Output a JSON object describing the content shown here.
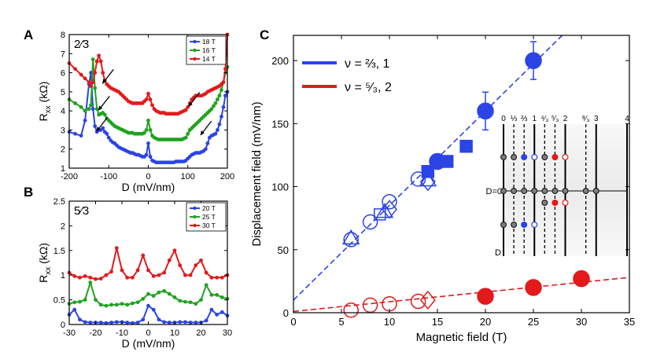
{
  "colors": {
    "blue": "#2b44e6",
    "green": "#1fa31f",
    "red": "#e3191b",
    "black": "#000000",
    "inset_bg": "#ebebeb"
  },
  "chart_data": [
    {
      "id": "A",
      "panel_label": "A",
      "type": "line",
      "annotation": "2⁄3",
      "xlabel": "D (mV/nm)",
      "ylabel": "R_xx (kΩ)",
      "xlim": [
        -200,
        200
      ],
      "ylim": [
        1,
        8
      ],
      "xticks": [
        -200,
        -100,
        0,
        100,
        200
      ],
      "yticks": [
        1,
        2,
        3,
        4,
        5,
        6,
        7,
        8
      ],
      "xtick_labels": [
        "-200",
        "-100",
        "0",
        "100",
        "200"
      ],
      "ytick_labels": [
        "1",
        "2",
        "3",
        "4",
        "5",
        "6",
        "7",
        "8"
      ],
      "legend": [
        "18 T",
        "16 T",
        "14 T"
      ],
      "legend_position": "top-right",
      "arrows": [
        {
          "x": -100,
          "y": 5.8
        },
        {
          "x": -110,
          "y": 4.4
        },
        {
          "x": -115,
          "y": 3.3
        },
        {
          "x": 118,
          "y": 4.6
        },
        {
          "x": 148,
          "y": 3.1
        }
      ],
      "x": [
        -200,
        -185,
        -170,
        -160,
        -150,
        -145,
        -140,
        -135,
        -130,
        -125,
        -120,
        -115,
        -110,
        -105,
        -100,
        -95,
        -90,
        -85,
        -80,
        -75,
        -70,
        -65,
        -60,
        -55,
        -50,
        -45,
        -40,
        -35,
        -30,
        -25,
        -20,
        -15,
        -10,
        -5,
        0,
        5,
        10,
        15,
        20,
        25,
        30,
        35,
        40,
        45,
        50,
        55,
        60,
        65,
        70,
        75,
        80,
        85,
        90,
        95,
        100,
        105,
        110,
        115,
        120,
        125,
        130,
        135,
        140,
        145,
        150,
        155,
        160,
        165,
        170,
        175,
        180,
        185,
        190,
        195,
        200
      ],
      "series": [
        {
          "name": "18 T",
          "color": "#2b44e6",
          "values": [
            2.9,
            2.8,
            2.7,
            3.5,
            5.4,
            6.0,
            4.1,
            3.2,
            2.9,
            3.0,
            3.0,
            3.1,
            2.9,
            2.8,
            2.6,
            2.45,
            2.35,
            2.3,
            2.2,
            2.1,
            2.05,
            2.0,
            1.95,
            1.9,
            1.85,
            1.8,
            1.8,
            1.75,
            1.7,
            1.7,
            1.65,
            1.6,
            1.6,
            1.7,
            2.3,
            1.6,
            1.4,
            1.35,
            1.3,
            1.3,
            1.3,
            1.3,
            1.3,
            1.3,
            1.3,
            1.3,
            1.3,
            1.3,
            1.35,
            1.35,
            1.35,
            1.35,
            1.35,
            1.4,
            1.5,
            1.6,
            1.7,
            1.75,
            1.8,
            1.8,
            1.8,
            1.85,
            1.9,
            2.0,
            2.3,
            2.6,
            2.7,
            2.75,
            2.8,
            3.0,
            3.3,
            3.7,
            4.2,
            4.8,
            5.0
          ]
        },
        {
          "name": "16 T",
          "color": "#1fa31f",
          "values": [
            4.6,
            4.4,
            4.2,
            4.0,
            4.1,
            4.3,
            6.7,
            5.2,
            4.1,
            3.8,
            3.85,
            3.9,
            3.8,
            3.6,
            3.5,
            3.4,
            3.3,
            3.2,
            3.15,
            3.1,
            3.05,
            3.0,
            2.95,
            2.9,
            2.85,
            2.85,
            2.85,
            2.8,
            2.8,
            2.8,
            2.8,
            2.8,
            2.85,
            3.0,
            3.5,
            3.0,
            2.7,
            2.6,
            2.55,
            2.5,
            2.5,
            2.5,
            2.5,
            2.5,
            2.5,
            2.5,
            2.5,
            2.5,
            2.5,
            2.5,
            2.5,
            2.5,
            2.55,
            2.6,
            2.8,
            3.0,
            3.1,
            3.2,
            3.3,
            3.4,
            3.5,
            3.6,
            3.7,
            3.8,
            3.9,
            4.0,
            4.1,
            4.25,
            4.4,
            4.6,
            4.8,
            5.1,
            5.5,
            6.0,
            6.3
          ]
        },
        {
          "name": "14 T",
          "color": "#e3191b",
          "values": [
            6.5,
            6.2,
            5.9,
            5.7,
            5.5,
            5.3,
            5.5,
            6.0,
            6.6,
            6.9,
            6.6,
            6.0,
            5.6,
            5.4,
            5.3,
            5.2,
            5.15,
            5.1,
            5.05,
            5.0,
            4.9,
            4.8,
            4.7,
            4.6,
            4.5,
            4.45,
            4.4,
            4.4,
            4.4,
            4.4,
            4.4,
            4.4,
            4.5,
            4.6,
            4.9,
            4.6,
            4.3,
            4.1,
            4.0,
            3.95,
            3.9,
            3.9,
            3.9,
            3.85,
            3.85,
            3.85,
            3.85,
            3.85,
            3.85,
            3.85,
            3.9,
            3.95,
            4.0,
            4.05,
            4.2,
            4.4,
            4.6,
            4.7,
            4.8,
            4.8,
            4.8,
            4.8,
            4.85,
            4.9,
            5.0,
            5.05,
            5.1,
            5.15,
            5.2,
            5.25,
            5.3,
            5.4,
            5.5,
            6.2,
            8.0
          ]
        }
      ]
    },
    {
      "id": "B",
      "panel_label": "B",
      "type": "line",
      "annotation": "5⁄3",
      "xlabel": "D (mV/nm)",
      "ylabel": "R_xx (kΩ)",
      "xlim": [
        -30,
        30
      ],
      "ylim": [
        0,
        2.5
      ],
      "xticks": [
        -30,
        -20,
        -10,
        0,
        10,
        20,
        30
      ],
      "yticks": [
        0,
        0.5,
        1,
        1.5,
        2,
        2.5
      ],
      "xtick_labels": [
        "-30",
        "-20",
        "-10",
        "0",
        "10",
        "20",
        "30"
      ],
      "ytick_labels": [
        "0",
        "0.5",
        "1",
        "1.5",
        "2",
        "2.5"
      ],
      "legend": [
        "20 T",
        "25 T",
        "30 T"
      ],
      "legend_position": "top-right",
      "x": [
        -30,
        -28,
        -26,
        -24,
        -22,
        -20,
        -18,
        -16,
        -14,
        -12,
        -10,
        -8,
        -6,
        -4,
        -2,
        0,
        2,
        4,
        6,
        8,
        10,
        12,
        14,
        16,
        18,
        20,
        22,
        24,
        26,
        28,
        30
      ],
      "series": [
        {
          "name": "20 T",
          "color": "#2b44e6",
          "values": [
            0.2,
            0.3,
            0.1,
            0.05,
            0.04,
            0.04,
            0.04,
            0.03,
            0.04,
            0.05,
            0.05,
            0.04,
            0.03,
            0.04,
            0.1,
            0.38,
            0.3,
            0.1,
            0.05,
            0.04,
            0.04,
            0.05,
            0.05,
            0.04,
            0.04,
            0.04,
            0.08,
            0.3,
            0.2,
            0.25,
            0.18
          ]
        },
        {
          "name": "25 T",
          "color": "#1fa31f",
          "values": [
            0.42,
            0.45,
            0.46,
            0.5,
            0.85,
            0.5,
            0.4,
            0.38,
            0.4,
            0.4,
            0.42,
            0.4,
            0.43,
            0.45,
            0.52,
            0.62,
            0.58,
            0.65,
            0.68,
            0.62,
            0.55,
            0.48,
            0.46,
            0.45,
            0.42,
            0.5,
            0.8,
            0.6,
            0.6,
            0.55,
            0.52
          ]
        },
        {
          "name": "30 T",
          "color": "#e3191b",
          "values": [
            1.05,
            0.98,
            0.95,
            0.98,
            0.95,
            0.92,
            0.93,
            1.0,
            1.07,
            1.55,
            1.1,
            0.95,
            0.95,
            1.1,
            1.4,
            1.1,
            0.98,
            1.0,
            1.05,
            1.3,
            1.5,
            1.2,
            1.0,
            1.0,
            1.2,
            1.3,
            1.05,
            0.95,
            0.95,
            0.95,
            1.0
          ]
        }
      ]
    },
    {
      "id": "C",
      "panel_label": "C",
      "type": "scatter",
      "xlabel": "Magnetic field (T)",
      "ylabel": "Displacement field (mV/nm)",
      "xlim": [
        0,
        35
      ],
      "ylim": [
        0,
        220
      ],
      "xticks": [
        0,
        5,
        10,
        15,
        20,
        25,
        30,
        35
      ],
      "yticks": [
        0,
        50,
        100,
        150,
        200
      ],
      "xtick_labels": [
        "0",
        "5",
        "10",
        "15",
        "20",
        "25",
        "30",
        "35"
      ],
      "ytick_labels": [
        "0",
        "50",
        "100",
        "150",
        "200"
      ],
      "legend": [
        "ν = ⅔, 1",
        "ν = ⁵⁄₃, 2"
      ],
      "legend_position": "top-left",
      "fit_lines": [
        {
          "series": "ν = ⅔, 1",
          "color": "#2b44e6",
          "x": [
            0,
            28
          ],
          "y": [
            10,
            220
          ]
        },
        {
          "series": "ν = ⁵⁄₃, 2",
          "color": "#e3191b",
          "x": [
            0,
            35
          ],
          "y": [
            1,
            28
          ]
        }
      ],
      "series": [
        {
          "name": "ν = ⅔, 1",
          "color": "#2b44e6",
          "points": [
            {
              "x": 6,
              "y": 58,
              "marker": "circle",
              "filled": false
            },
            {
              "x": 6,
              "y": 59,
              "marker": "triangle",
              "filled": false
            },
            {
              "x": 8,
              "y": 72,
              "marker": "circle",
              "filled": false
            },
            {
              "x": 9,
              "y": 78,
              "marker": "square",
              "filled": false
            },
            {
              "x": 9.5,
              "y": 80,
              "marker": "triangle",
              "filled": false
            },
            {
              "x": 10,
              "y": 88,
              "marker": "circle",
              "filled": false
            },
            {
              "x": 10,
              "y": 82,
              "marker": "diamond",
              "filled": false
            },
            {
              "x": 13,
              "y": 106,
              "marker": "circle",
              "filled": false
            },
            {
              "x": 14,
              "y": 105,
              "marker": "triangle",
              "filled": false
            },
            {
              "x": 14,
              "y": 104,
              "marker": "diamond",
              "filled": false
            },
            {
              "x": 14,
              "y": 112,
              "marker": "square",
              "filled": true
            },
            {
              "x": 15,
              "y": 120,
              "marker": "circle",
              "filled": true
            },
            {
              "x": 16,
              "y": 120,
              "marker": "square",
              "filled": true
            },
            {
              "x": 18,
              "y": 132,
              "marker": "square",
              "filled": true
            },
            {
              "x": 20,
              "y": 160,
              "marker": "circle",
              "filled": true,
              "error": 15
            },
            {
              "x": 25,
              "y": 200,
              "marker": "circle",
              "filled": true,
              "error": 15
            }
          ]
        },
        {
          "name": "ν = ⁵⁄₃, 2",
          "color": "#e3191b",
          "points": [
            {
              "x": 6,
              "y": 2,
              "marker": "circle",
              "filled": false
            },
            {
              "x": 8,
              "y": 6,
              "marker": "circle",
              "filled": false
            },
            {
              "x": 10,
              "y": 7,
              "marker": "circle",
              "filled": false
            },
            {
              "x": 13,
              "y": 9,
              "marker": "circle",
              "filled": false
            },
            {
              "x": 14,
              "y": 10,
              "marker": "diamond",
              "filled": false
            },
            {
              "x": 20,
              "y": 13,
              "marker": "circle",
              "filled": true
            },
            {
              "x": 25,
              "y": 20,
              "marker": "circle",
              "filled": true
            },
            {
              "x": 30,
              "y": 27,
              "marker": "circle",
              "filled": true
            }
          ]
        }
      ],
      "inset": {
        "fillings": [
          {
            "value": 0,
            "label": "0",
            "style": "solid"
          },
          {
            "value": 0.3333,
            "label": "⅓",
            "style": "dashed"
          },
          {
            "value": 0.6667,
            "label": "⅔",
            "style": "dashed"
          },
          {
            "value": 1,
            "label": "1",
            "style": "solid"
          },
          {
            "value": 1.3333,
            "label": "⁴⁄₃",
            "style": "dashed"
          },
          {
            "value": 1.6667,
            "label": "⁵⁄₃",
            "style": "dashed"
          },
          {
            "value": 2,
            "label": "2",
            "style": "solid"
          },
          {
            "value": 2.6667,
            "label": "⁸⁄₃",
            "style": "dashed"
          },
          {
            "value": 3,
            "label": "3",
            "style": "solid"
          },
          {
            "value": 4,
            "label": "4",
            "style": "solid"
          }
        ],
        "rows": [
          "top",
          "D=0",
          "bottom"
        ],
        "d_zero_label": "D=0",
        "d_axis_label": "D",
        "dots": [
          {
            "filling": 0,
            "row": "top",
            "kind": "gray"
          },
          {
            "filling": 0.3333,
            "row": "top",
            "kind": "gray"
          },
          {
            "filling": 0.6667,
            "row": "top",
            "kind": "blue-filled"
          },
          {
            "filling": 1,
            "row": "top",
            "kind": "blue-open"
          },
          {
            "filling": 1.3333,
            "row": "top",
            "kind": "gray"
          },
          {
            "filling": 1.6667,
            "row": "top",
            "kind": "red-filled"
          },
          {
            "filling": 2,
            "row": "top",
            "kind": "red-open"
          },
          {
            "filling": 0,
            "row": "D=0",
            "kind": "gray"
          },
          {
            "filling": 0.3333,
            "row": "D=0",
            "kind": "gray"
          },
          {
            "filling": 0.6667,
            "row": "D=0",
            "kind": "gray"
          },
          {
            "filling": 1,
            "row": "D=0",
            "kind": "gray"
          },
          {
            "filling": 1.3333,
            "row": "D=0",
            "kind": "gray"
          },
          {
            "filling": 1.6667,
            "row": "D=0",
            "kind": "gray"
          },
          {
            "filling": 2,
            "row": "D=0",
            "kind": "gray"
          },
          {
            "filling": 2.6667,
            "row": "D=0",
            "kind": "gray"
          },
          {
            "filling": 3,
            "row": "D=0",
            "kind": "gray"
          },
          {
            "filling": 1.3333,
            "row": "mid-low",
            "kind": "gray"
          },
          {
            "filling": 1.6667,
            "row": "mid-low",
            "kind": "red-filled"
          },
          {
            "filling": 2,
            "row": "mid-low",
            "kind": "red-open"
          },
          {
            "filling": 0,
            "row": "bottom",
            "kind": "gray"
          },
          {
            "filling": 0.3333,
            "row": "bottom",
            "kind": "gray"
          },
          {
            "filling": 0.6667,
            "row": "bottom",
            "kind": "blue-filled"
          },
          {
            "filling": 1,
            "row": "bottom",
            "kind": "blue-open"
          }
        ]
      }
    }
  ]
}
